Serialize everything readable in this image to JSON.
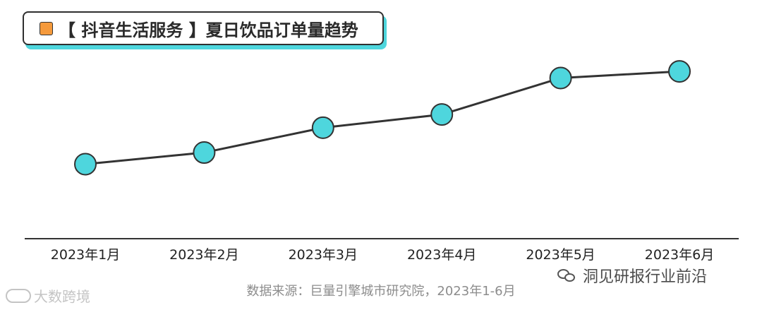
{
  "colors": {
    "accent_cyan": "#4ed6dd",
    "title_square": "#f59a3c",
    "line": "#333333",
    "axis": "#333333"
  },
  "chart_data": {
    "type": "line",
    "title": "【 抖音生活服务 】夏日饮品订单量趋势",
    "categories": [
      "2023年1月",
      "2023年2月",
      "2023年3月",
      "2023年4月",
      "2023年5月",
      "2023年6月"
    ],
    "series": [
      {
        "values": [
          0.35,
          0.42,
          0.57,
          0.65,
          0.87,
          0.91
        ]
      }
    ],
    "ylim": [
      -0.1,
      1.0
    ],
    "y_axis_labels": false,
    "grid": false,
    "legend": "none"
  },
  "source": "数据来源：巨量引擎城市研究院，2023年1-6月",
  "watermarks": {
    "left": "大数跨境",
    "right": "洞见研报行业前沿",
    "right_icon": "wechat-icon"
  }
}
